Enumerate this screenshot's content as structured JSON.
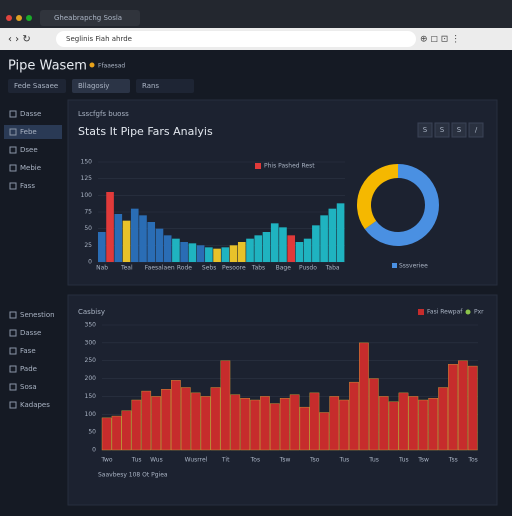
{
  "browser": {
    "tab": "Gheabrapchg Sosla",
    "address": "Seglinis Fiah ahrde"
  },
  "app": {
    "title": "Pipe Wasem",
    "badge": "Ffaaesad",
    "tabs": [
      "Fede Sasaee",
      "Bllagosiy",
      "Rans"
    ]
  },
  "sidebar": {
    "top": [
      "Dasse",
      "Febe",
      "Dsee",
      "Mebie",
      "Fass"
    ],
    "bottom": [
      "Senestion",
      "Dasse",
      "Fase",
      "Pade",
      "Sosa",
      "Kadapes"
    ]
  },
  "panel1": {
    "caption": "Lsscfgfs buoss",
    "buttons": [
      "S",
      "S",
      "S",
      "/"
    ]
  },
  "chart_data": [
    {
      "type": "bar",
      "title": "Stats It Pipe Fars Analyis",
      "categories": [
        "Nab",
        null,
        null,
        "Teal",
        null,
        null,
        null,
        "Faesalaen",
        null,
        null,
        "Rode",
        null,
        null,
        "Sebs",
        null,
        null,
        "Pesoore",
        null,
        null,
        "Tabs",
        null,
        null,
        "Bage",
        null,
        null,
        "Pusdo",
        null,
        null,
        "Taba",
        null
      ],
      "series": [
        {
          "name": "Phis Pashed Rest",
          "color": "#e03a3a",
          "values": [
            45,
            105,
            72,
            62,
            80,
            70,
            60,
            50,
            40,
            35,
            30,
            28,
            25,
            22,
            20,
            22,
            25,
            30,
            35,
            40,
            45,
            58,
            52,
            40,
            30,
            35,
            55,
            70,
            80,
            88
          ],
          "colors": [
            "#2a6db5",
            "#e03a3a",
            "#2a6db5",
            "#e8c22a",
            "#2a6db5",
            "#2a6db5",
            "#2a6db5",
            "#2a6db5",
            "#2a6db5",
            "#1fb3c0",
            "#2a6db5",
            "#1fb3c0",
            "#2a6db5",
            "#1fb3c0",
            "#e8c22a",
            "#1fb3c0",
            "#e8c22a",
            "#e8c22a",
            "#1fb3c0",
            "#1fb3c0",
            "#1fb3c0",
            "#1fb3c0",
            "#1fb3c0",
            "#e03a3a",
            "#1fb3c0",
            "#1fb3c0",
            "#1fb3c0",
            "#1fb3c0",
            "#1fb3c0",
            "#1fb3c0"
          ]
        }
      ],
      "ylim": [
        0,
        150
      ],
      "yticks": [
        0,
        25,
        50,
        75,
        100,
        125,
        150
      ],
      "grid": true
    },
    {
      "type": "pie",
      "categories": [
        "Sssveriee",
        null
      ],
      "values": [
        65,
        35
      ],
      "colors": [
        "#4a90e2",
        "#f5b800"
      ]
    },
    {
      "type": "bar",
      "title": "Casbisy",
      "x_label": "Saavbesy 108 Ot Pgiea",
      "categories": [
        "Two",
        null,
        null,
        "Tus",
        null,
        "Wus",
        null,
        null,
        null,
        "Wusrrel",
        null,
        null,
        "Tit",
        null,
        null,
        "Tos",
        null,
        null,
        "Tsw",
        null,
        null,
        "Tso",
        null,
        null,
        "Tus",
        null,
        null,
        "Tus",
        null,
        null,
        "Tus",
        null,
        "Tsw",
        null,
        null,
        "Tss",
        null,
        "Tos"
      ],
      "series": [
        {
          "name": "Fasi Rewpaf",
          "color": "#c62c2c",
          "values": [
            90,
            95,
            110,
            140,
            165,
            150,
            170,
            195,
            175,
            160,
            150,
            175,
            250,
            155,
            145,
            140,
            150,
            130,
            145,
            155,
            120,
            160,
            105,
            150,
            140,
            190,
            300,
            200,
            150,
            135,
            160,
            150,
            140,
            145,
            175,
            240,
            250,
            235
          ]
        }
      ],
      "annotations": [
        {
          "text": "Pxr",
          "color": "#8bc34a"
        }
      ],
      "ylim": [
        0,
        350
      ],
      "yticks": [
        0,
        50,
        100,
        150,
        200,
        250,
        300,
        350
      ],
      "grid": true
    }
  ]
}
